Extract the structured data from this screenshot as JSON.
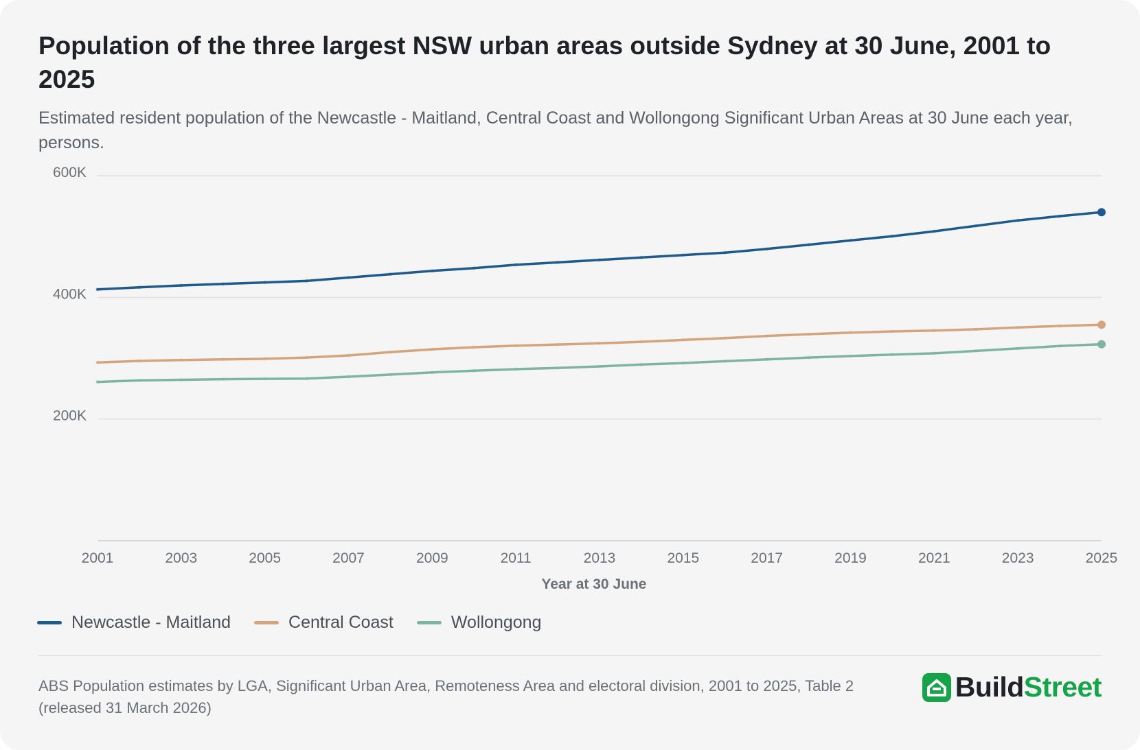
{
  "header": {
    "title": "Population of the three largest NSW urban areas outside Sydney at 30 June, 2001 to 2025",
    "subtitle": "Estimated resident population of the Newcastle - Maitland, Central Coast and Wollongong Significant Urban Areas at 30 June each year, persons."
  },
  "footer": {
    "source": "ABS Population estimates by LGA, Significant Urban Area, Remoteness Area and electoral division, 2001 to 2025, Table 2 (released 31 March 2026)",
    "logo_part1": "Build",
    "logo_part2": "Street",
    "logo_icon": "house-icon",
    "logo_color": "#16a34a"
  },
  "chart_data": {
    "type": "line",
    "title": "Population of the three largest NSW urban areas outside Sydney at 30 June, 2001 to 2025",
    "xlabel": "Year at 30 June",
    "ylabel": "",
    "ylim": [
      0,
      600000
    ],
    "yticks": [
      200000,
      400000,
      600000
    ],
    "ytick_labels": [
      "200K",
      "400K",
      "600K"
    ],
    "xticks": [
      2001,
      2003,
      2005,
      2007,
      2009,
      2011,
      2013,
      2015,
      2017,
      2019,
      2021,
      2023,
      2025
    ],
    "x": [
      2001,
      2002,
      2003,
      2004,
      2005,
      2006,
      2007,
      2008,
      2009,
      2010,
      2011,
      2012,
      2013,
      2014,
      2015,
      2016,
      2017,
      2018,
      2019,
      2020,
      2021,
      2022,
      2023,
      2024,
      2025
    ],
    "grid": true,
    "legend_position": "bottom-left",
    "series": [
      {
        "name": "Newcastle - Maitland",
        "color": "#1f5a8e",
        "values": [
          413000,
          416500,
          419500,
          422000,
          424500,
          427000,
          432500,
          438000,
          443500,
          448000,
          453500,
          457500,
          461500,
          465500,
          469500,
          473500,
          479500,
          486500,
          493500,
          500500,
          508500,
          517500,
          526500,
          533500,
          540000
        ]
      },
      {
        "name": "Central Coast",
        "color": "#d4a47c",
        "values": [
          293000,
          295500,
          297000,
          298000,
          299000,
          301000,
          304500,
          310000,
          314500,
          318000,
          320500,
          322500,
          324500,
          327000,
          330000,
          333000,
          336500,
          339500,
          342000,
          344000,
          345500,
          347500,
          350500,
          353000,
          355000
        ]
      },
      {
        "name": "Wollongong",
        "color": "#7fb5a0",
        "values": [
          261000,
          263500,
          264500,
          265500,
          266000,
          266500,
          269500,
          273000,
          276500,
          279500,
          282000,
          284000,
          286500,
          289500,
          292000,
          295000,
          298000,
          301000,
          303500,
          306000,
          308000,
          312000,
          316000,
          320000,
          323000
        ]
      }
    ]
  }
}
